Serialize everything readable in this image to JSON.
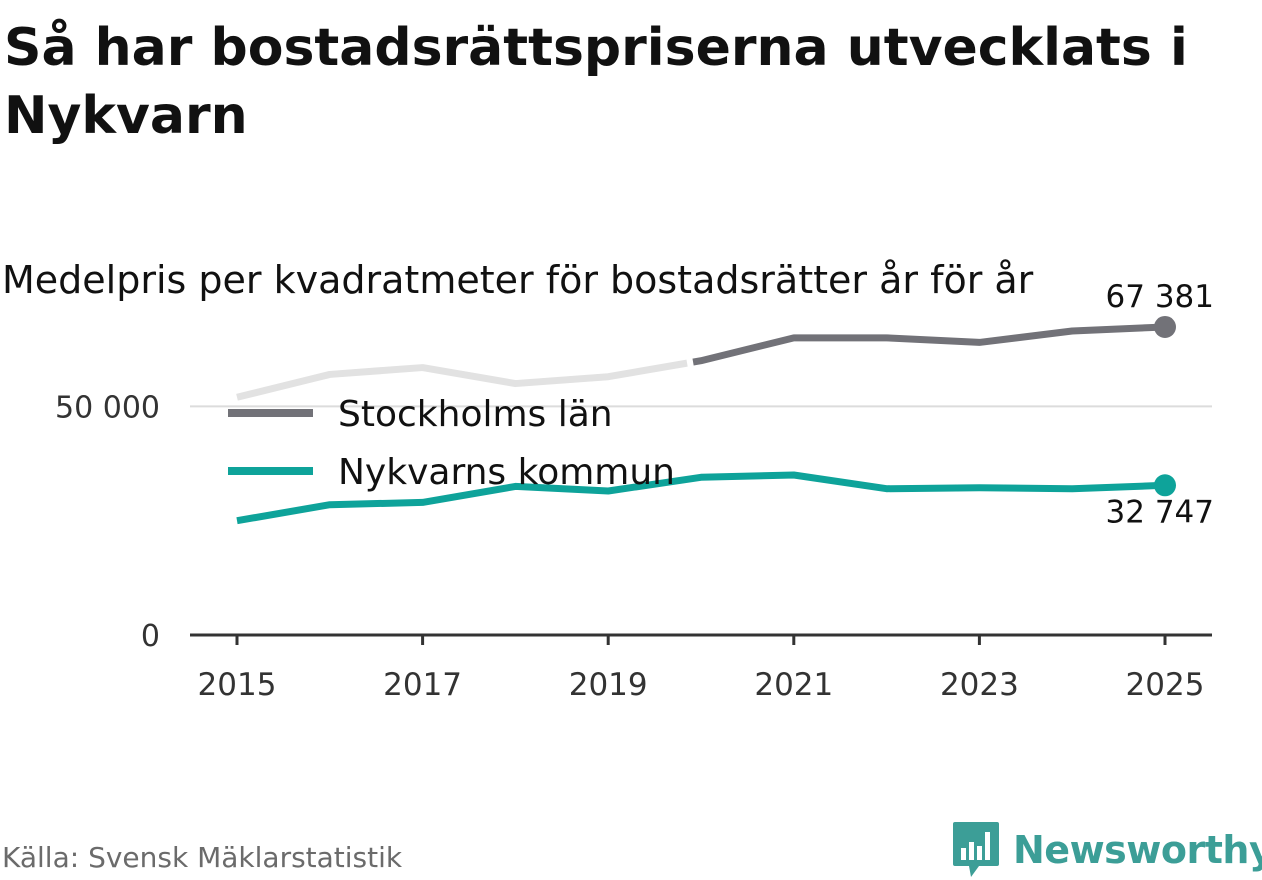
{
  "title": "Så har bostadsrättspriserna utvecklats i Nykvarn",
  "subtitle": "Medelpris per kvadratmeter för bostadsrätter år för år",
  "source": "Källa: Svensk Mäklarstatistik",
  "brand": {
    "name": "Newsworthy",
    "color": "#3c9e97"
  },
  "chart_data": {
    "type": "line",
    "title": "Så har bostadsrättspriserna utvecklats i Nykvarn",
    "subtitle": "Medelpris per kvadratmeter för bostadsrätter år för år",
    "xlabel": "",
    "ylabel": "",
    "x": [
      2015,
      2016,
      2017,
      2018,
      2019,
      2020,
      2021,
      2022,
      2023,
      2024,
      2025
    ],
    "x_ticks": [
      "2015",
      "2017",
      "2019",
      "2021",
      "2023",
      "2025"
    ],
    "y_ticks": [
      {
        "value": 0,
        "label": "0"
      },
      {
        "value": 50000,
        "label": "50 000"
      }
    ],
    "ylim": [
      0,
      70000
    ],
    "grid": true,
    "legend_placement": "top-left",
    "series": [
      {
        "name": "Stockholms län",
        "color": "#727278",
        "faded_color": "#e2e2e2",
        "values": [
          52000,
          57000,
          58500,
          55000,
          56500,
          60000,
          65000,
          65000,
          64000,
          66500,
          67381
        ],
        "end_label": "67 381"
      },
      {
        "name": "Nykvarns kommun",
        "color": "#0ea39a",
        "values": [
          25000,
          28500,
          29000,
          32500,
          31500,
          34500,
          35000,
          32000,
          32200,
          32000,
          32747
        ],
        "end_label": "32 747"
      }
    ]
  }
}
